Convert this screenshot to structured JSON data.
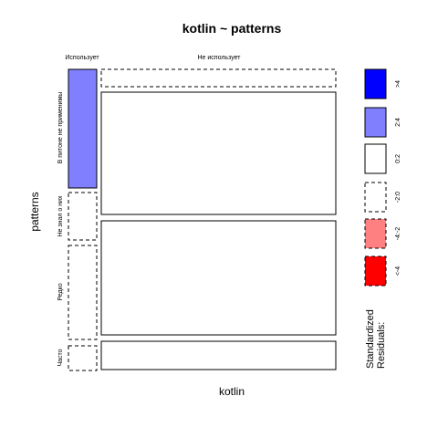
{
  "chart_data": {
    "type": "mosaic",
    "title": "kotlin ~ patterns",
    "xlabel": "kotlin",
    "ylabel": "patterns",
    "x_categories": [
      "Использует",
      "Не использует"
    ],
    "y_categories": [
      "В питоне не применимы",
      "Не знал о них",
      "Редко",
      "Часто"
    ],
    "cells": [
      {
        "x": "Использует",
        "y": "В питоне не применимы",
        "residual_class": "2:4"
      },
      {
        "x": "Использует",
        "y": "Не знал о них",
        "residual_class": "-2:0"
      },
      {
        "x": "Использует",
        "y": "Редко",
        "residual_class": "-2:0"
      },
      {
        "x": "Использует",
        "y": "Часто",
        "residual_class": "-2:0"
      },
      {
        "x": "Не использует",
        "y": "В питоне не применимы",
        "residual_class": "-2:0"
      },
      {
        "x": "Не использует",
        "y": "Не знал о них",
        "residual_class": "0:2"
      },
      {
        "x": "Не использует",
        "y": "Редко",
        "residual_class": "0:2"
      },
      {
        "x": "Не использует",
        "y": "Часто",
        "residual_class": "0:2"
      }
    ],
    "legend": {
      "title_lines": [
        "Standardized",
        "Residuals:"
      ],
      "items": [
        {
          "label": ">4",
          "fill": "#0000FF",
          "border": "solid"
        },
        {
          "label": "2:4",
          "fill": "#8080FF",
          "border": "solid"
        },
        {
          "label": "0:2",
          "fill": "#FFFFFF",
          "border": "solid"
        },
        {
          "label": "-2:0",
          "fill": "#FFFFFF",
          "border": "dashed"
        },
        {
          "label": "-4:-2",
          "fill": "#FF8080",
          "border": "dashed"
        },
        {
          "label": "<-4",
          "fill": "#FF0000",
          "border": "dashed"
        }
      ]
    }
  }
}
